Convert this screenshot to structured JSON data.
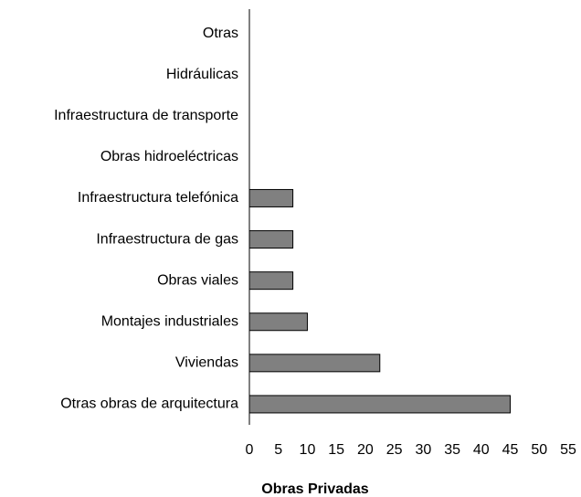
{
  "chart_data": {
    "type": "hbar",
    "x_label": "Obras Privadas",
    "categories": [
      "Otras",
      "Hidráulicas",
      "Infraestructura de transporte",
      "Obras hidroeléctricas",
      "Infraestructura telefónica",
      "Infraestructura de gas",
      "Obras viales",
      "Montajes industriales",
      "Viviendas",
      "Otras obras de arquitectura"
    ],
    "values": [
      0,
      0,
      0,
      0,
      7.5,
      7.5,
      7.5,
      10,
      22.5,
      45
    ],
    "color": "#808080",
    "xlim": [
      0,
      55
    ],
    "xticks": [
      0,
      5,
      10,
      15,
      20,
      25,
      30,
      35,
      40,
      45,
      50,
      55
    ],
    "grid": false
  }
}
